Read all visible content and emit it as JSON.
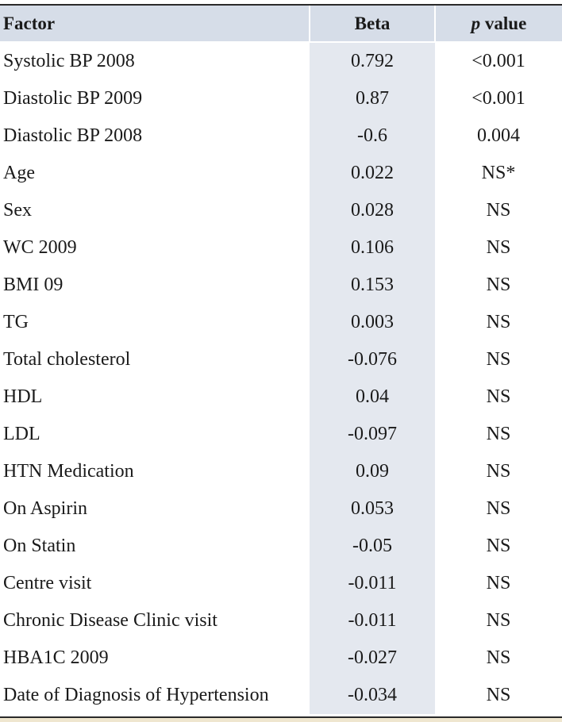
{
  "table": {
    "headers": {
      "factor": "Factor",
      "beta": "Beta",
      "p_value_italic": "p",
      "p_value_rest": " value"
    },
    "rows": [
      {
        "factor": "Systolic BP 2008",
        "beta": "0.792",
        "p": "<0.001"
      },
      {
        "factor": "Diastolic BP 2009",
        "beta": "0.87",
        "p": "<0.001"
      },
      {
        "factor": "Diastolic BP 2008",
        "beta": "-0.6",
        "p": "0.004"
      },
      {
        "factor": "Age",
        "beta": "0.022",
        "p": "NS*"
      },
      {
        "factor": "Sex",
        "beta": "0.028",
        "p": "NS"
      },
      {
        "factor": "WC 2009",
        "beta": "0.106",
        "p": "NS"
      },
      {
        "factor": "BMI 09",
        "beta": "0.153",
        "p": "NS"
      },
      {
        "factor": "TG",
        "beta": "0.003",
        "p": "NS"
      },
      {
        "factor": "Total cholesterol",
        "beta": "-0.076",
        "p": "NS"
      },
      {
        "factor": "HDL",
        "beta": "0.04",
        "p": "NS"
      },
      {
        "factor": "LDL",
        "beta": "-0.097",
        "p": "NS"
      },
      {
        "factor": "HTN Medication",
        "beta": "0.09",
        "p": "NS"
      },
      {
        "factor": "On Aspirin",
        "beta": "0.053",
        "p": "NS"
      },
      {
        "factor": "On Statin",
        "beta": "-0.05",
        "p": "NS"
      },
      {
        "factor": "Centre visit",
        "beta": "-0.011",
        "p": "NS"
      },
      {
        "factor": "Chronic Disease Clinic visit",
        "beta": "-0.011",
        "p": "NS"
      },
      {
        "factor": "HBA1C 2009",
        "beta": "-0.027",
        "p": "NS"
      },
      {
        "factor": "Date of Diagnosis of Hypertension",
        "beta": "-0.034",
        "p": "NS"
      }
    ]
  }
}
